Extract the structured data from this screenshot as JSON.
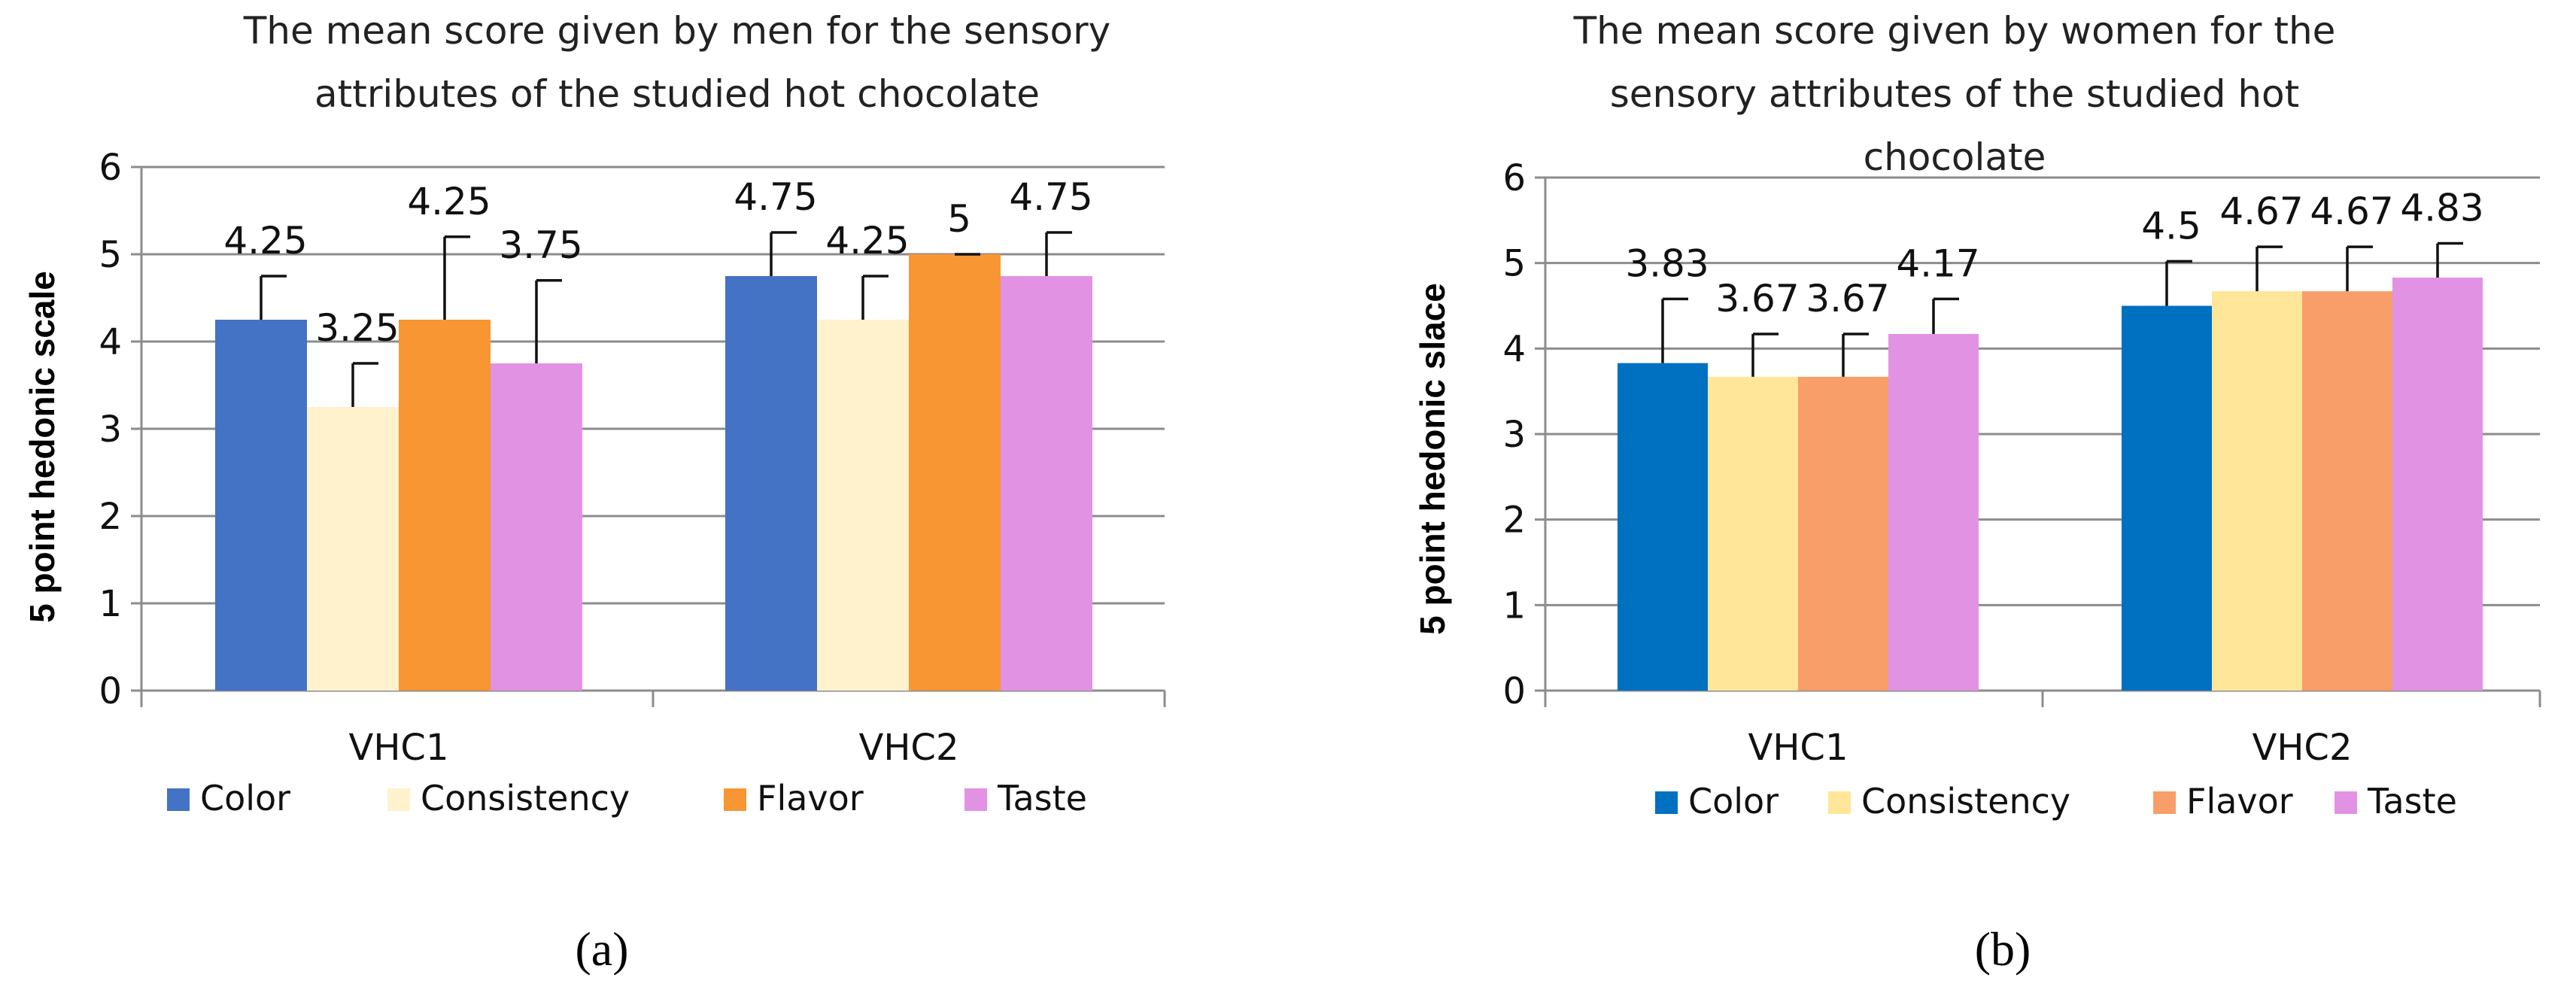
{
  "chart_data": [
    {
      "type": "bar",
      "panel_label": "(a)",
      "title_lines": [
        "The mean score given by men for the sensory",
        "attributes of the studied hot chocolate"
      ],
      "ylabel": "5 point hedonic scale",
      "xlabel": "",
      "ylim": [
        0,
        6
      ],
      "yticks": [
        "0",
        "1",
        "2",
        "3",
        "4",
        "5",
        "6"
      ],
      "categories": [
        "VHC1",
        "VHC2"
      ],
      "series": [
        {
          "name": "Color",
          "color": "#4472C4",
          "values": [
            4.25,
            4.75
          ],
          "errors": [
            0.5,
            0.5
          ],
          "labels": [
            "4.25",
            "4.75"
          ]
        },
        {
          "name": "Consistency",
          "color": "#FFF2CC",
          "values": [
            3.25,
            4.25
          ],
          "errors": [
            0.5,
            0.5
          ],
          "labels": [
            "3.25",
            "4.25"
          ]
        },
        {
          "name": "Flavor",
          "color": "#F79633",
          "values": [
            4.25,
            5
          ],
          "errors": [
            0.95,
            0
          ],
          "labels": [
            "4.25",
            "5"
          ]
        },
        {
          "name": "Taste",
          "color": "#E192E3",
          "values": [
            3.75,
            4.75
          ],
          "errors": [
            0.95,
            0.5
          ],
          "labels": [
            "3.75",
            "4.75"
          ]
        }
      ],
      "legend_position": "bottom",
      "grid": true
    },
    {
      "type": "bar",
      "panel_label": "(b)",
      "title_lines": [
        "The mean score given by women for the",
        "sensory attributes of the studied hot",
        "chocolate"
      ],
      "ylabel": "5 point hedonic slace",
      "xlabel": "",
      "ylim": [
        0,
        6
      ],
      "yticks": [
        "0",
        "1",
        "2",
        "3",
        "4",
        "5",
        "6"
      ],
      "categories": [
        "VHC1",
        "VHC2"
      ],
      "series": [
        {
          "name": "Color",
          "color": "#0070C0",
          "values": [
            3.83,
            4.5
          ],
          "errors": [
            0.75,
            0.52
          ],
          "labels": [
            "3.83",
            "4.5"
          ]
        },
        {
          "name": "Consistency",
          "color": "#FFE699",
          "values": [
            3.67,
            4.67
          ],
          "errors": [
            0.5,
            0.52
          ],
          "labels": [
            "3.67",
            "4.67"
          ]
        },
        {
          "name": "Flavor",
          "color": "#F79E69",
          "values": [
            3.67,
            4.67
          ],
          "errors": [
            0.5,
            0.52
          ],
          "labels": [
            "3.67",
            "4.67"
          ]
        },
        {
          "name": "Taste",
          "color": "#E192E3",
          "values": [
            4.17,
            4.83
          ],
          "errors": [
            0.41,
            0.4
          ],
          "labels": [
            "4.17",
            "4.83"
          ]
        }
      ],
      "legend_position": "bottom",
      "grid": true
    }
  ]
}
